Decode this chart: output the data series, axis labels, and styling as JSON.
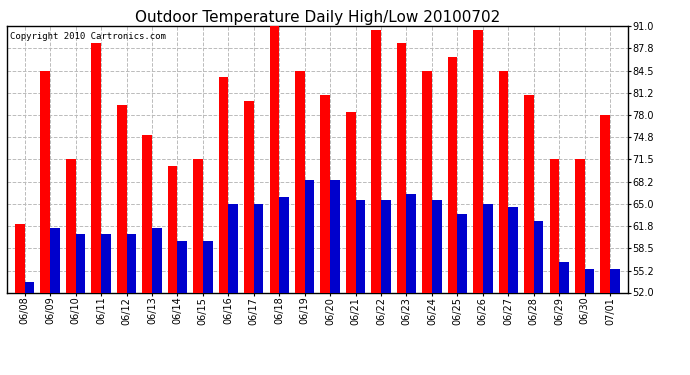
{
  "title": "Outdoor Temperature Daily High/Low 20100702",
  "copyright": "Copyright 2010 Cartronics.com",
  "dates": [
    "06/08",
    "06/09",
    "06/10",
    "06/11",
    "06/12",
    "06/13",
    "06/14",
    "06/15",
    "06/16",
    "06/17",
    "06/18",
    "06/19",
    "06/20",
    "06/21",
    "06/22",
    "06/23",
    "06/24",
    "06/25",
    "06/26",
    "06/27",
    "06/28",
    "06/29",
    "06/30",
    "07/01"
  ],
  "highs": [
    62.0,
    84.5,
    71.5,
    88.5,
    79.5,
    75.0,
    70.5,
    71.5,
    83.5,
    80.0,
    91.0,
    84.5,
    81.0,
    78.5,
    90.5,
    88.5,
    84.5,
    86.5,
    90.5,
    84.5,
    81.0,
    71.5,
    71.5,
    78.0
  ],
  "lows": [
    53.5,
    61.5,
    60.5,
    60.5,
    60.5,
    61.5,
    59.5,
    59.5,
    65.0,
    65.0,
    66.0,
    68.5,
    68.5,
    65.5,
    65.5,
    66.5,
    65.5,
    63.5,
    65.0,
    64.5,
    62.5,
    56.5,
    55.5,
    55.5
  ],
  "high_color": "#ff0000",
  "low_color": "#0000cc",
  "ylim_min": 52.0,
  "ylim_max": 91.0,
  "yticks": [
    52.0,
    55.2,
    58.5,
    61.8,
    65.0,
    68.2,
    71.5,
    74.8,
    78.0,
    81.2,
    84.5,
    87.8,
    91.0
  ],
  "background_color": "#ffffff",
  "plot_bg_color": "#ffffff",
  "grid_color": "#bbbbbb",
  "title_fontsize": 11,
  "tick_fontsize": 7,
  "copyright_fontsize": 6.5
}
